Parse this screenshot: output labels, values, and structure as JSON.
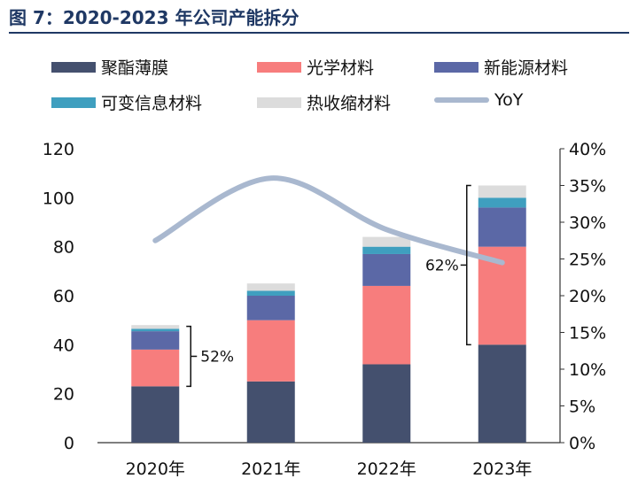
{
  "figure_title": "图 7：2020-2023 年公司产能拆分",
  "chart_data": {
    "type": "bar",
    "stacked": true,
    "categories": [
      "2020年",
      "2021年",
      "2022年",
      "2023年"
    ],
    "series": [
      {
        "name": "聚酯薄膜",
        "values": [
          23,
          25,
          32,
          40
        ],
        "color": "#44506e"
      },
      {
        "name": "光学材料",
        "values": [
          15,
          25,
          32,
          40
        ],
        "color": "#f77d7d"
      },
      {
        "name": "新能源材料",
        "values": [
          7.5,
          10,
          13,
          16
        ],
        "color": "#5b68a6"
      },
      {
        "name": "可变信息材料",
        "values": [
          1,
          2,
          3,
          4
        ],
        "color": "#3f9fbf"
      },
      {
        "name": "热收缩材料",
        "values": [
          1.5,
          3,
          4,
          5
        ],
        "color": "#dcdcdc"
      }
    ],
    "line_series": {
      "name": "YoY",
      "x": [
        "2020年",
        "2021年",
        "2022年",
        "2023年"
      ],
      "values": [
        0.275,
        0.36,
        0.29,
        0.245
      ],
      "color": "#a9b8cf",
      "axis": "right"
    },
    "left_axis": {
      "min": 0,
      "max": 120,
      "ticks": [
        "0",
        "20",
        "40",
        "60",
        "80",
        "100",
        "120"
      ]
    },
    "right_axis": {
      "min": 0,
      "max": 0.4,
      "ticks": [
        "0%",
        "5%",
        "10%",
        "15%",
        "20%",
        "25%",
        "30%",
        "35%",
        "40%"
      ]
    },
    "annotations": [
      {
        "text": "52%",
        "category": "2020年",
        "from": 23,
        "to": 47.5,
        "side": "right"
      },
      {
        "text": "62%",
        "category": "2023年",
        "from": 40,
        "to": 105,
        "side": "left"
      }
    ],
    "legend": {
      "placement": "top"
    }
  }
}
